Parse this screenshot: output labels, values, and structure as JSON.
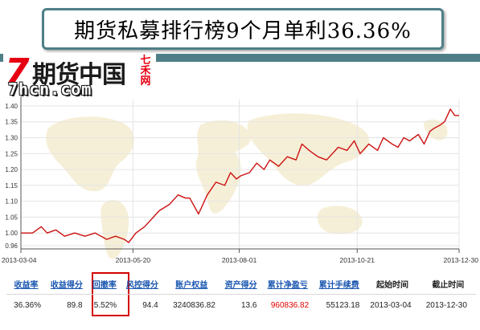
{
  "title": "期货私募排行榜9个月单利36.36%",
  "logo": {
    "mark": "7",
    "name": "期货中国",
    "side": "七禾网",
    "url": "7hcn.com"
  },
  "chart_data": {
    "type": "line",
    "title": "",
    "xlabel": "",
    "ylabel": "",
    "ylim": [
      0.95,
      1.42
    ],
    "yticks": [
      "0.96",
      "1.00",
      "1.05",
      "1.10",
      "1.15",
      "1.20",
      "1.25",
      "1.30",
      "1.35",
      "1.40"
    ],
    "ytick_values": [
      0.96,
      1.0,
      1.05,
      1.1,
      1.15,
      1.2,
      1.25,
      1.3,
      1.35,
      1.4
    ],
    "xticks": [
      "2013-03-04",
      "2013-05-20",
      "2013-08-01",
      "2013-10-21",
      "2013-12-30"
    ],
    "grid": true,
    "color": "#cc1111",
    "series": [
      {
        "x": [
          "2013-03-04",
          "2013-03-12",
          "2013-03-18",
          "2013-03-22",
          "2013-03-28",
          "2013-04-03",
          "2013-04-10",
          "2013-04-17",
          "2013-04-24",
          "2013-05-02",
          "2013-05-08",
          "2013-05-14",
          "2013-05-17",
          "2013-05-22",
          "2013-05-28",
          "2013-06-03",
          "2013-06-07",
          "2013-06-14",
          "2013-06-20",
          "2013-06-25",
          "2013-06-28",
          "2013-07-04",
          "2013-07-10",
          "2013-07-16",
          "2013-07-22",
          "2013-07-26",
          "2013-07-30",
          "2013-08-02",
          "2013-08-08",
          "2013-08-13",
          "2013-08-18",
          "2013-08-22",
          "2013-08-28",
          "2013-09-03",
          "2013-09-09",
          "2013-09-13",
          "2013-09-18",
          "2013-09-24",
          "2013-09-30",
          "2013-10-08",
          "2013-10-14",
          "2013-10-19",
          "2013-10-23",
          "2013-10-29",
          "2013-11-04",
          "2013-11-08",
          "2013-11-14",
          "2013-11-18",
          "2013-11-22",
          "2013-11-26",
          "2013-12-02",
          "2013-12-06",
          "2013-12-10",
          "2013-12-13",
          "2013-12-17",
          "2013-12-20",
          "2013-12-24",
          "2013-12-27",
          "2013-12-30"
        ],
        "values": [
          1.0,
          1.0,
          1.02,
          1.0,
          1.01,
          0.99,
          1.0,
          0.99,
          1.0,
          0.98,
          0.99,
          0.98,
          0.97,
          1.0,
          1.02,
          1.05,
          1.07,
          1.09,
          1.12,
          1.11,
          1.11,
          1.06,
          1.12,
          1.16,
          1.15,
          1.19,
          1.17,
          1.18,
          1.19,
          1.22,
          1.2,
          1.23,
          1.21,
          1.24,
          1.23,
          1.28,
          1.26,
          1.24,
          1.23,
          1.27,
          1.26,
          1.29,
          1.25,
          1.28,
          1.26,
          1.3,
          1.28,
          1.27,
          1.3,
          1.29,
          1.31,
          1.28,
          1.32,
          1.33,
          1.34,
          1.35,
          1.39,
          1.37,
          1.37
        ]
      }
    ]
  },
  "stats": {
    "headers": [
      "收益率",
      "收益得分",
      "回撤率",
      "风控得分",
      "账户权益",
      "资产得分",
      "累计净盈亏",
      "累计手续费",
      "起始时间",
      "截止时间"
    ],
    "values": [
      "36.36%",
      "89.8",
      "5.52%",
      "94.4",
      "3240836.82",
      "13.6",
      "960836.82",
      "55123.18",
      "2013-03-04",
      "2013-12-30"
    ]
  }
}
